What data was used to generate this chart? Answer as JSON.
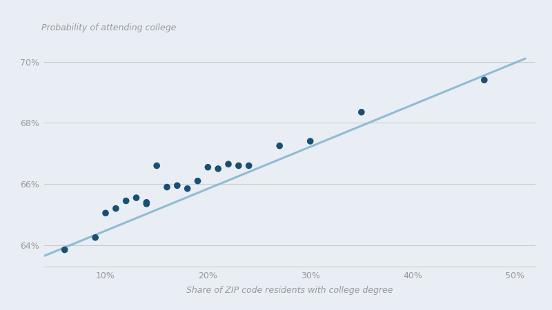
{
  "scatter_x": [
    0.06,
    0.09,
    0.1,
    0.11,
    0.12,
    0.13,
    0.14,
    0.14,
    0.15,
    0.16,
    0.17,
    0.18,
    0.19,
    0.2,
    0.21,
    0.22,
    0.23,
    0.24,
    0.27,
    0.3,
    0.35,
    0.47
  ],
  "scatter_y": [
    63.85,
    64.25,
    65.05,
    65.2,
    65.45,
    65.55,
    65.4,
    65.35,
    66.6,
    65.9,
    65.95,
    65.85,
    66.1,
    66.55,
    66.5,
    66.65,
    66.6,
    66.6,
    67.25,
    67.4,
    68.35,
    69.4
  ],
  "line_x": [
    0.04,
    0.51
  ],
  "line_y": [
    63.65,
    70.1
  ],
  "dot_color": "#1b4f72",
  "line_color": "#85b7d0",
  "background_color": "#e8eef4",
  "ylabel": "Probability of attending college",
  "xlabel": "Share of ZIP code residents with college degree",
  "ytick_vals": [
    64,
    66,
    68,
    70
  ],
  "ytick_labels": [
    "64%",
    "66%",
    "68%",
    "70%"
  ],
  "xtick_vals": [
    0.1,
    0.2,
    0.3,
    0.4,
    0.5
  ],
  "xtick_labels": [
    "10%",
    "20%",
    "30%",
    "40%",
    "50%"
  ],
  "ylim": [
    63.3,
    70.8
  ],
  "xlim": [
    0.04,
    0.52
  ],
  "tick_color": "#999999",
  "grid_color": "#cccccc",
  "label_fontsize": 9,
  "tick_fontsize": 9
}
